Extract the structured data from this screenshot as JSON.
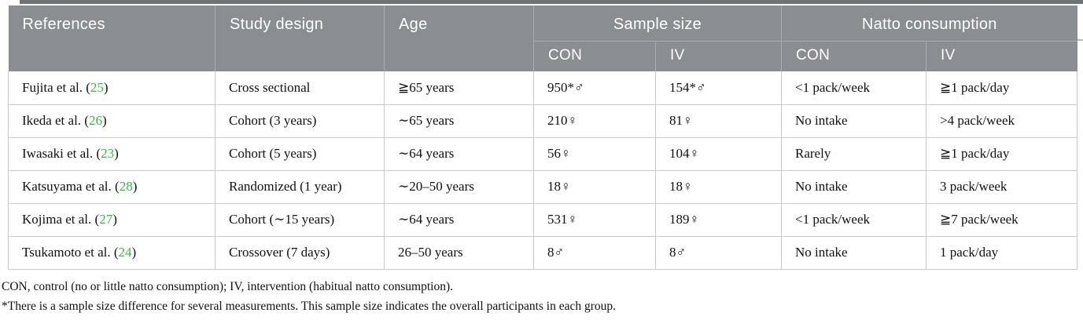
{
  "colors": {
    "header_bg": "#8a8e92",
    "header_line": "#a8acaf",
    "body_border": "#c8cbcd",
    "citation_green": "#4bae50",
    "top_strip": "#6e7377"
  },
  "table": {
    "header": {
      "references": "References",
      "study_design": "Study design",
      "age": "Age",
      "sample_size": "Sample size",
      "natto_consumption": "Natto consumption",
      "con": "CON",
      "iv": "IV"
    },
    "rows": [
      {
        "reference": {
          "prefix": "Fujita et al. (",
          "number": "25",
          "suffix": ")"
        },
        "study_design": "Cross sectional",
        "age": "≧65 years",
        "sample_con": "950*♂",
        "sample_iv": "154*♂",
        "natto_con": "<1 pack/week",
        "natto_iv": "≧1 pack/day"
      },
      {
        "reference": {
          "prefix": "Ikeda et al. (",
          "number": "26",
          "suffix": ")"
        },
        "study_design": "Cohort (3 years)",
        "age": "∼65 years",
        "sample_con": "210♀",
        "sample_iv": "81♀",
        "natto_con": "No intake",
        "natto_iv": ">4 pack/week"
      },
      {
        "reference": {
          "prefix": "Iwasaki et al. (",
          "number": "23",
          "suffix": ")"
        },
        "study_design": "Cohort (5 years)",
        "age": "∼64 years",
        "sample_con": "56♀",
        "sample_iv": "104♀",
        "natto_con": "Rarely",
        "natto_iv": "≧1 pack/day"
      },
      {
        "reference": {
          "prefix": "Katsuyama et al. (",
          "number": "28",
          "suffix": ")"
        },
        "study_design": "Randomized (1 year)",
        "age": "∼20–50 years",
        "sample_con": "18♀",
        "sample_iv": "18♀",
        "natto_con": "No intake",
        "natto_iv": "3 pack/week"
      },
      {
        "reference": {
          "prefix": "Kojima et al. (",
          "number": "27",
          "suffix": ")"
        },
        "study_design": "Cohort (∼15 years)",
        "age": "∼64 years",
        "sample_con": "531♀",
        "sample_iv": "189♀",
        "natto_con": "<1 pack/week",
        "natto_iv": "≧7 pack/week"
      },
      {
        "reference": {
          "prefix": "Tsukamoto et al. (",
          "number": "24",
          "suffix": ")"
        },
        "study_design": "Crossover (7 days)",
        "age": "26–50 years",
        "sample_con": "8♂",
        "sample_iv": "8♂",
        "natto_con": "No intake",
        "natto_iv": "1 pack/day"
      }
    ]
  },
  "footnotes": {
    "abbrev": "CON, control (no or little natto consumption); IV, intervention (habitual natto consumption).",
    "asterisk": "*There is a sample size difference for several measurements. This sample size indicates the overall participants in each group."
  }
}
